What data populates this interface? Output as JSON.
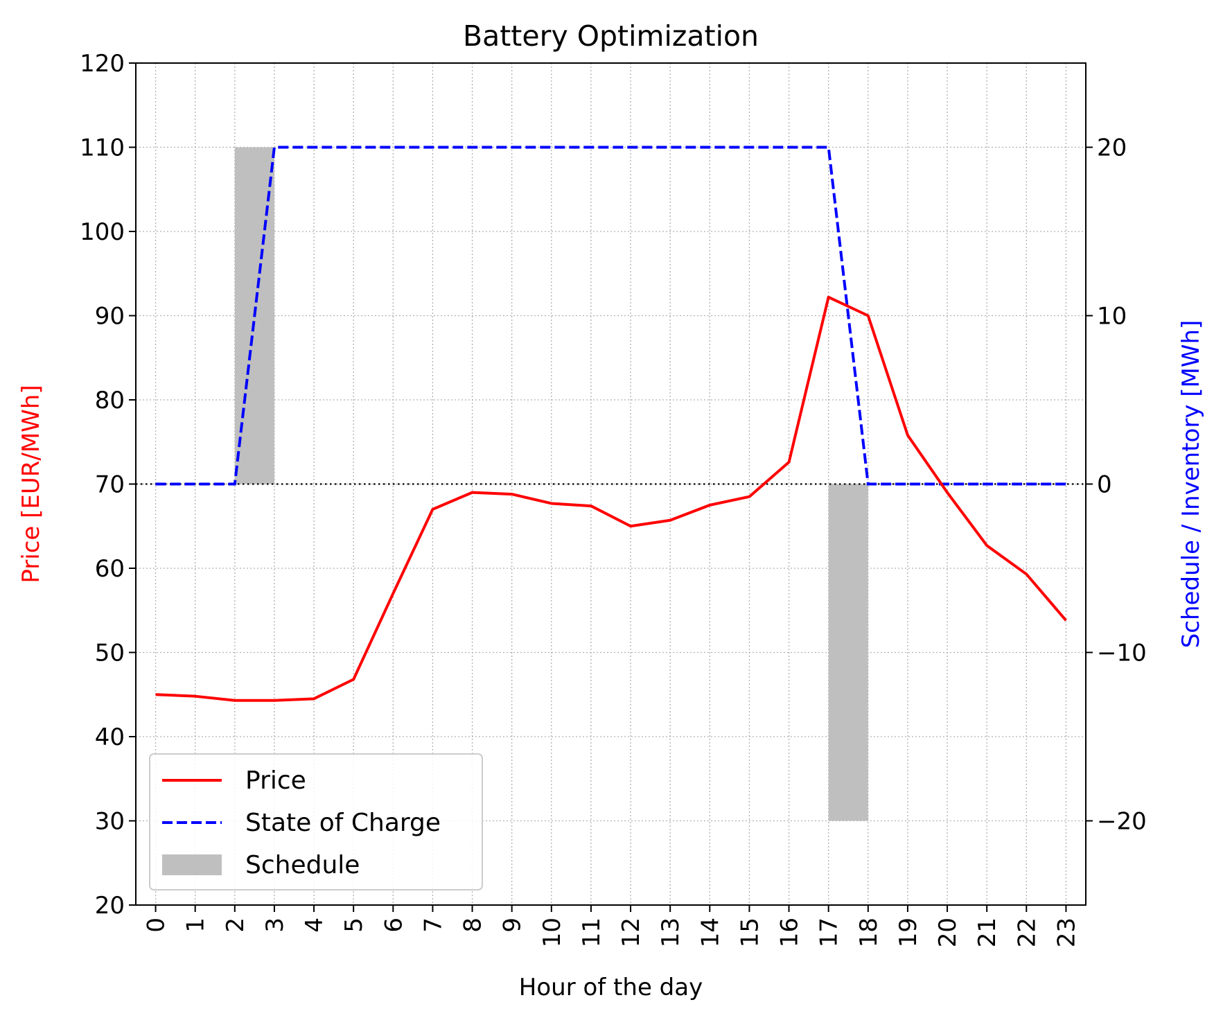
{
  "chart_data": {
    "type": "line",
    "title": "Battery Optimization",
    "xlabel": "Hour of the day",
    "ylabel_left": "Price [EUR/MWh]",
    "ylabel_right": "Schedule / Inventory [MWh]",
    "x": [
      0,
      1,
      2,
      3,
      4,
      5,
      6,
      7,
      8,
      9,
      10,
      11,
      12,
      13,
      14,
      15,
      16,
      17,
      18,
      19,
      20,
      21,
      22,
      23
    ],
    "x_tick_labels": [
      "0",
      "1",
      "2",
      "3",
      "4",
      "5",
      "6",
      "7",
      "8",
      "9",
      "10",
      "11",
      "12",
      "13",
      "14",
      "15",
      "16",
      "17",
      "18",
      "19",
      "20",
      "21",
      "22",
      "23"
    ],
    "xlim": [
      -0.5,
      23.5
    ],
    "ylim_left": [
      20,
      120
    ],
    "yticks_left": [
      20,
      30,
      40,
      50,
      60,
      70,
      80,
      90,
      100,
      110,
      120
    ],
    "ylim_right": [
      -25,
      25
    ],
    "yticks_right": [
      -20,
      -10,
      0,
      10,
      20
    ],
    "ytick_labels_right": [
      "−20",
      "−10",
      "0",
      "10",
      "20"
    ],
    "grid": true,
    "zero_line_right": 0,
    "series": [
      {
        "name": "Price",
        "type": "line",
        "axis": "left",
        "color": "#ff0000",
        "style": "solid",
        "values": [
          45.0,
          44.8,
          44.3,
          44.3,
          44.5,
          46.8,
          57.0,
          67.0,
          69.0,
          68.8,
          67.7,
          67.4,
          65.0,
          65.7,
          67.5,
          68.5,
          72.6,
          92.2,
          90.0,
          75.8,
          69.0,
          62.7,
          59.3,
          53.8
        ]
      },
      {
        "name": "State of Charge",
        "type": "line",
        "axis": "right",
        "color": "#0000ff",
        "style": "dashed",
        "values": [
          0,
          0,
          0,
          20,
          20,
          20,
          20,
          20,
          20,
          20,
          20,
          20,
          20,
          20,
          20,
          20,
          20,
          20,
          0,
          0,
          0,
          0,
          0,
          0
        ]
      },
      {
        "name": "Schedule",
        "type": "bar",
        "axis": "right",
        "color": "#bfbfbf",
        "bars": [
          {
            "x_start": 2,
            "x_end": 3,
            "value": 20
          },
          {
            "x_start": 17,
            "x_end": 18,
            "value": -20
          }
        ]
      }
    ],
    "legend": {
      "position": "lower-left",
      "entries": [
        "Price",
        "State of Charge",
        "Schedule"
      ]
    },
    "colors": {
      "left_axis_label": "#ff0000",
      "right_axis_label": "#0000ff",
      "grid": "#b0b0b0"
    }
  }
}
